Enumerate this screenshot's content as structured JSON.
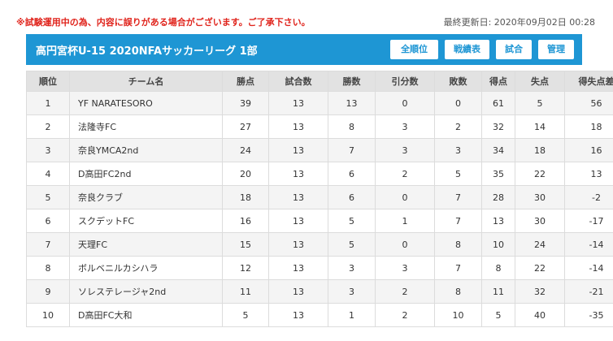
{
  "notice": "※試験運用中の為、内容に誤りがある場合がございます。ご了承下さい。",
  "last_updated": "最終更新日: 2020年09月02日 00:28",
  "league_title": "高円宮杯U-15 2020NFAサッカーリーグ 1部",
  "tabs": [
    "全順位",
    "戦績表",
    "試合",
    "管理"
  ],
  "active_tab": "全順位",
  "colors": {
    "header_bar": "#1e96d4",
    "notice": "#e0241c"
  },
  "table": {
    "headers": [
      "順位",
      "チーム名",
      "勝点",
      "試合数",
      "勝数",
      "引分数",
      "敗数",
      "得点",
      "失点",
      "得失点差"
    ],
    "rows": [
      [
        "1",
        "YF NARATESORO",
        "39",
        "13",
        "13",
        "0",
        "0",
        "61",
        "5",
        "56"
      ],
      [
        "2",
        "法隆寺FC",
        "27",
        "13",
        "8",
        "3",
        "2",
        "32",
        "14",
        "18"
      ],
      [
        "3",
        "奈良YMCA2nd",
        "24",
        "13",
        "7",
        "3",
        "3",
        "34",
        "18",
        "16"
      ],
      [
        "4",
        "D高田FC2nd",
        "20",
        "13",
        "6",
        "2",
        "5",
        "35",
        "22",
        "13"
      ],
      [
        "5",
        "奈良クラブ",
        "18",
        "13",
        "6",
        "0",
        "7",
        "28",
        "30",
        "-2"
      ],
      [
        "6",
        "スクデットFC",
        "16",
        "13",
        "5",
        "1",
        "7",
        "13",
        "30",
        "-17"
      ],
      [
        "7",
        "天理FC",
        "15",
        "13",
        "5",
        "0",
        "8",
        "10",
        "24",
        "-14"
      ],
      [
        "8",
        "ボルベニルカシハラ",
        "12",
        "13",
        "3",
        "3",
        "7",
        "8",
        "22",
        "-14"
      ],
      [
        "9",
        "ソレステレージャ2nd",
        "11",
        "13",
        "3",
        "2",
        "8",
        "11",
        "32",
        "-21"
      ],
      [
        "10",
        "D高田FC大和",
        "5",
        "13",
        "1",
        "2",
        "10",
        "5",
        "40",
        "-35"
      ]
    ]
  }
}
